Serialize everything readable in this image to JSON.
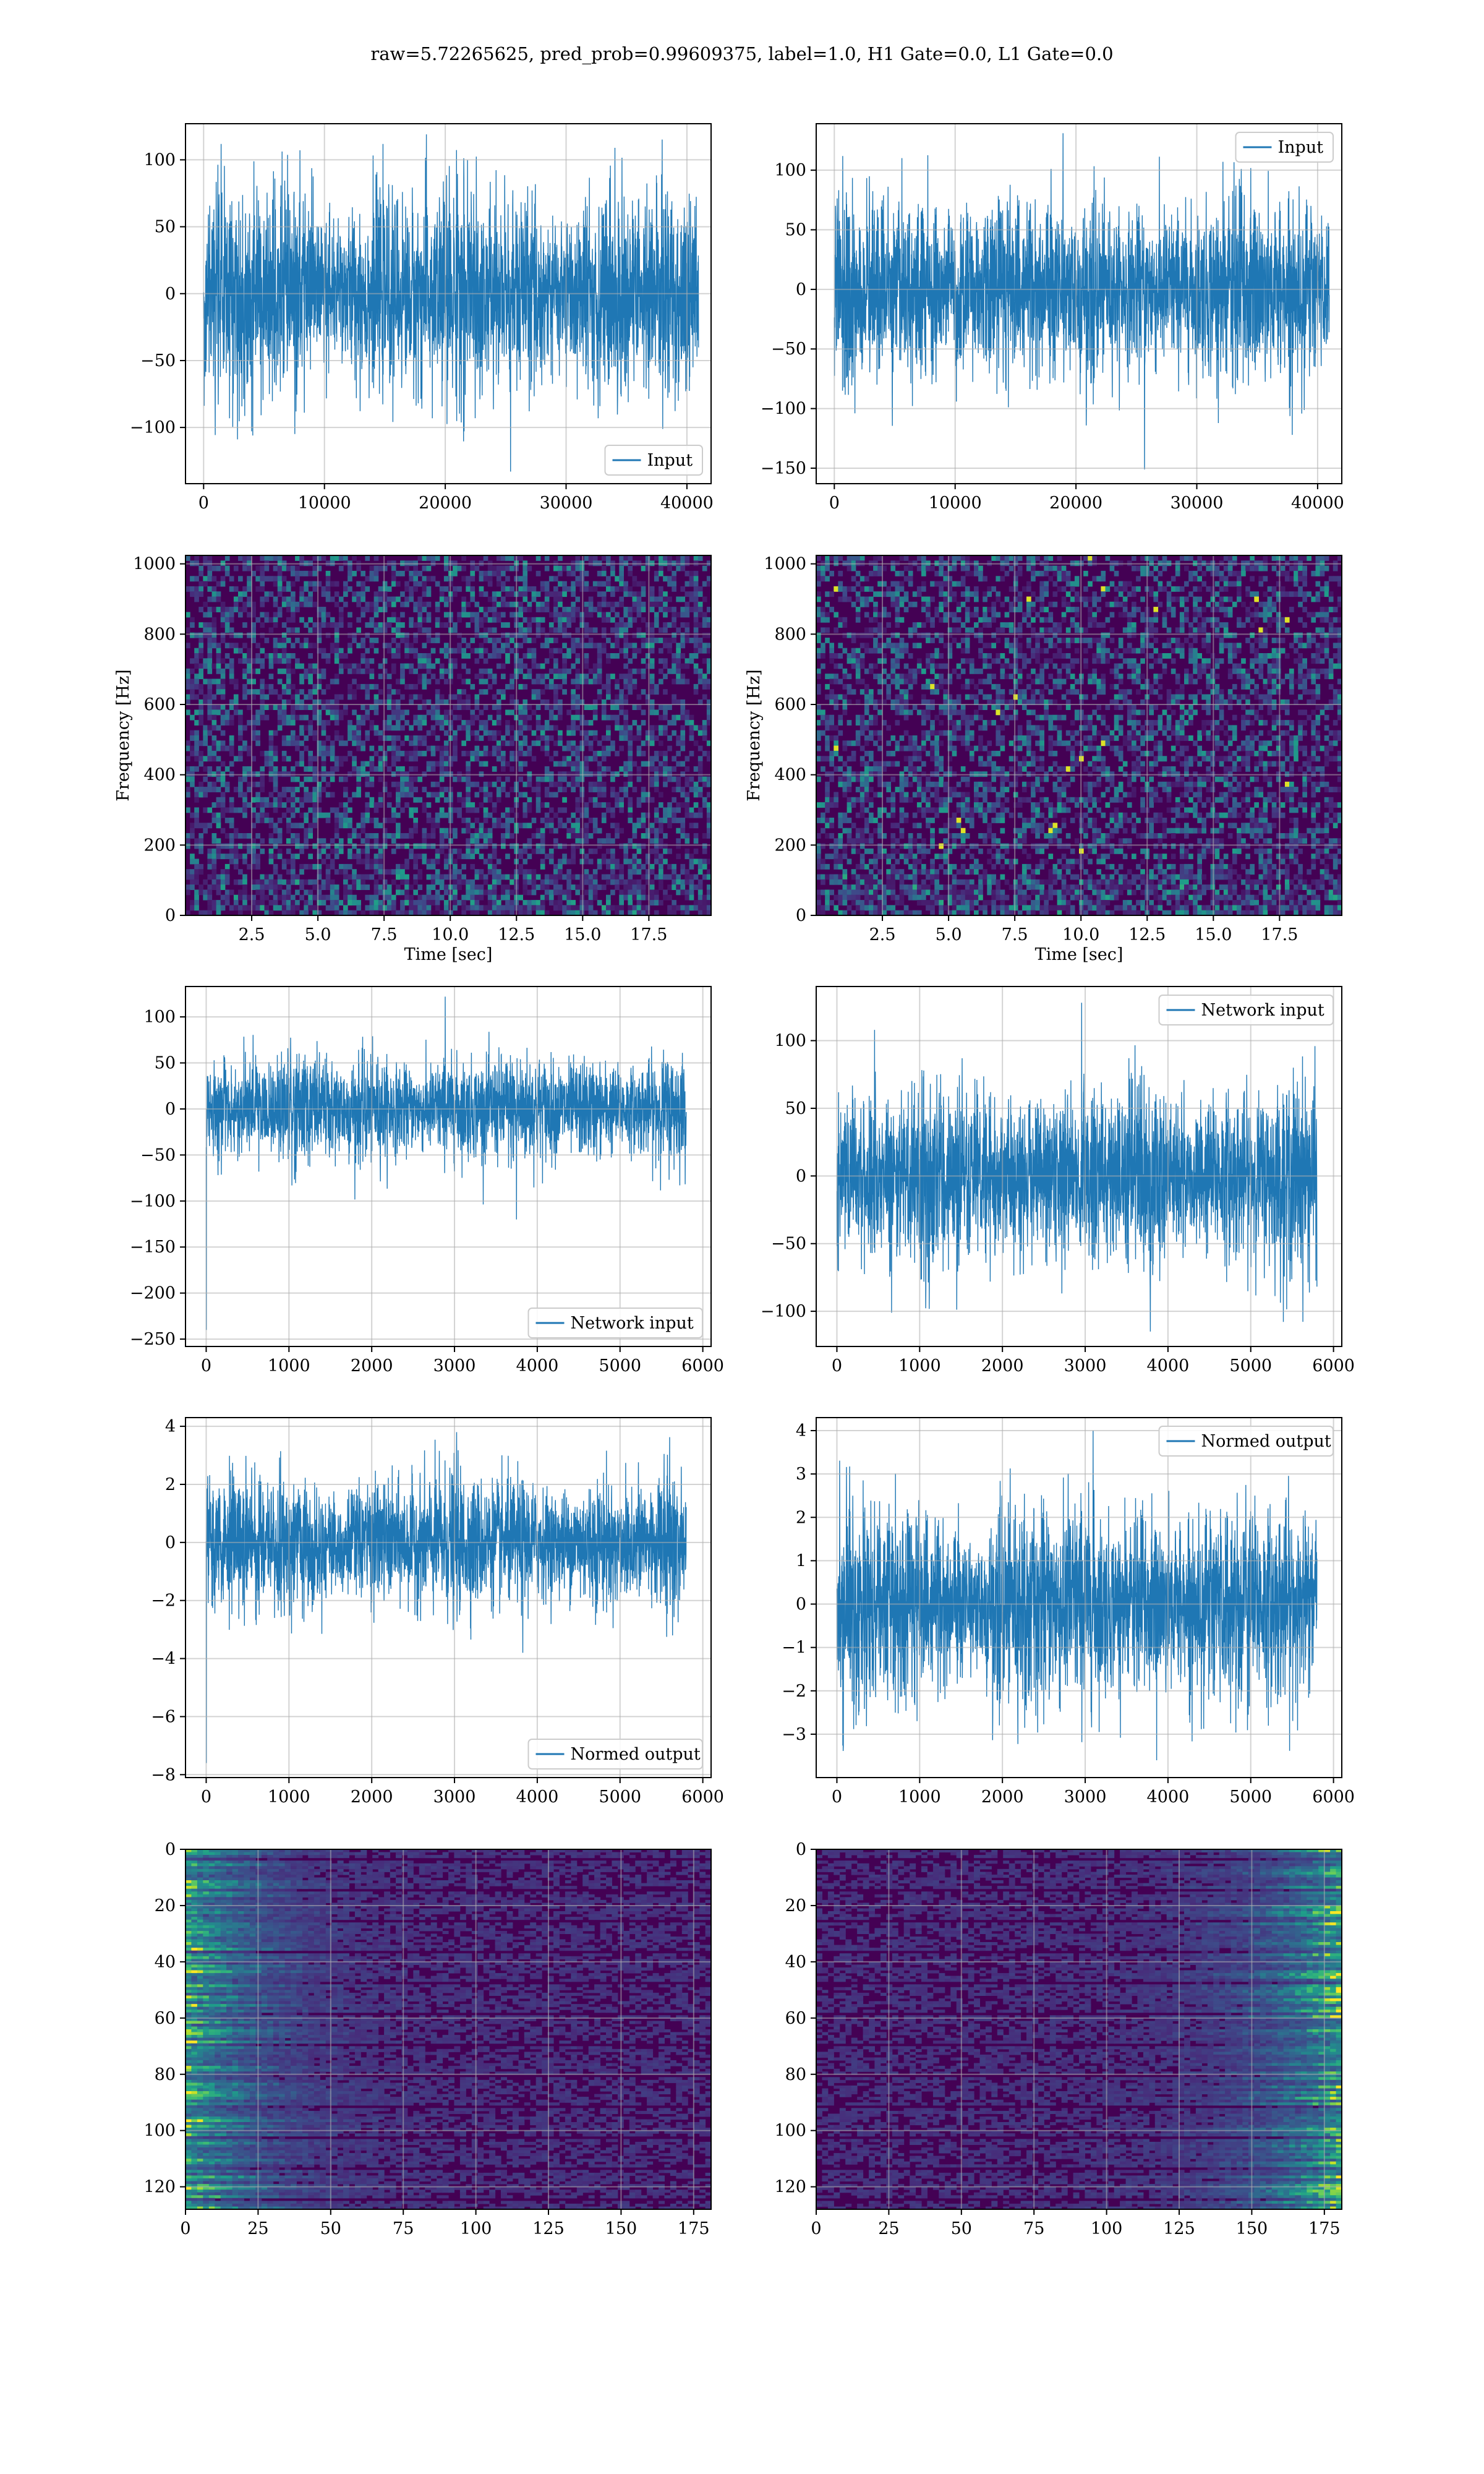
{
  "figure_title": "raw=5.72265625, pred_prob=0.99609375, label=1.0, H1 Gate=0.0, L1 Gate=0.0",
  "colors": {
    "series": "#1f77b4",
    "viridis_dark": "#440154",
    "grid": "#b0b0b0"
  },
  "chart_data": [
    {
      "id": "h1-input",
      "type": "line",
      "series": [
        {
          "name": "Input"
        }
      ],
      "legend_position": "lower-right",
      "xlim": [
        -1500,
        42000
      ],
      "ylim": [
        -142,
        127
      ],
      "xticks": [
        0,
        10000,
        20000,
        30000,
        40000
      ],
      "yticks": [
        -100,
        -50,
        0,
        50,
        100
      ],
      "x_range": [
        0,
        40960
      ],
      "amplitude_std": 32,
      "peaks": {
        "max": 119,
        "min": -133
      },
      "grid": true
    },
    {
      "id": "l1-input",
      "type": "line",
      "series": [
        {
          "name": "Input"
        }
      ],
      "legend_position": "upper-right",
      "xlim": [
        -1500,
        42000
      ],
      "ylim": [
        -163,
        139
      ],
      "xticks": [
        0,
        10000,
        20000,
        30000,
        40000
      ],
      "yticks": [
        -150,
        -100,
        -50,
        0,
        50,
        100
      ],
      "x_range": [
        0,
        40960
      ],
      "amplitude_std": 32,
      "peaks": {
        "max": 131,
        "min": -151
      },
      "grid": true
    },
    {
      "id": "h1-spectrogram",
      "type": "heatmap",
      "xlabel": "Time [sec]",
      "ylabel": "Frequency [Hz]",
      "xlim": [
        0,
        19.85
      ],
      "ylim": [
        0,
        1024
      ],
      "xticks": [
        2.5,
        5.0,
        7.5,
        10.0,
        12.5,
        15.0,
        17.5
      ],
      "yticks": [
        0,
        200,
        400,
        600,
        800,
        1000
      ],
      "colormap": "viridis",
      "grid": true
    },
    {
      "id": "l1-spectrogram",
      "type": "heatmap",
      "xlabel": "Time [sec]",
      "ylabel": "Frequency [Hz]",
      "xlim": [
        0,
        19.85
      ],
      "ylim": [
        0,
        1024
      ],
      "xticks": [
        2.5,
        5.0,
        7.5,
        10.0,
        12.5,
        15.0,
        17.5
      ],
      "yticks": [
        0,
        200,
        400,
        600,
        800,
        1000
      ],
      "colormap": "viridis",
      "grid": true
    },
    {
      "id": "h1-network-input",
      "type": "line",
      "series": [
        {
          "name": "Network input"
        }
      ],
      "legend_position": "lower-right",
      "xlim": [
        -250,
        6100
      ],
      "ylim": [
        -258,
        133
      ],
      "xticks": [
        0,
        1000,
        2000,
        3000,
        4000,
        5000,
        6000
      ],
      "yticks": [
        -250,
        -200,
        -150,
        -100,
        -50,
        0,
        50,
        100
      ],
      "x_range": [
        0,
        5800
      ],
      "amplitude_std": 24,
      "peaks": {
        "max": 122,
        "min": -240
      },
      "grid": true
    },
    {
      "id": "l1-network-input",
      "type": "line",
      "series": [
        {
          "name": "Network input"
        }
      ],
      "legend_position": "upper-right",
      "xlim": [
        -250,
        6100
      ],
      "ylim": [
        -126,
        140
      ],
      "xticks": [
        0,
        1000,
        2000,
        3000,
        4000,
        5000,
        6000
      ],
      "yticks": [
        -100,
        -50,
        0,
        50,
        100
      ],
      "x_range": [
        0,
        5800
      ],
      "amplitude_std": 28,
      "peaks": {
        "max": 128,
        "min": -115
      },
      "grid": true
    },
    {
      "id": "h1-normed-output",
      "type": "line",
      "series": [
        {
          "name": "Normed output"
        }
      ],
      "legend_position": "lower-right",
      "xlim": [
        -250,
        6100
      ],
      "ylim": [
        -8.1,
        4.3
      ],
      "xticks": [
        0,
        1000,
        2000,
        3000,
        4000,
        5000,
        6000
      ],
      "yticks": [
        -8,
        -6,
        -4,
        -2,
        0,
        2,
        4
      ],
      "x_range": [
        0,
        5800
      ],
      "amplitude_std": 0.95,
      "peaks": {
        "max": 3.8,
        "min": -7.6
      },
      "grid": true
    },
    {
      "id": "l1-normed-output",
      "type": "line",
      "series": [
        {
          "name": "Normed output"
        }
      ],
      "legend_position": "upper-right",
      "xlim": [
        -250,
        6100
      ],
      "ylim": [
        -4.0,
        4.3
      ],
      "xticks": [
        0,
        1000,
        2000,
        3000,
        4000,
        5000,
        6000
      ],
      "yticks": [
        -3,
        -2,
        -1,
        0,
        1,
        2,
        3,
        4
      ],
      "x_range": [
        0,
        5800
      ],
      "amplitude_std": 0.95,
      "peaks": {
        "max": 4.0,
        "min": -3.6
      },
      "grid": true
    },
    {
      "id": "h1-feature-map",
      "type": "heatmap",
      "xlim": [
        0,
        181
      ],
      "ylim": [
        128,
        0
      ],
      "xticks": [
        0,
        25,
        50,
        75,
        100,
        125,
        150,
        175
      ],
      "yticks": [
        0,
        20,
        40,
        60,
        80,
        100,
        120
      ],
      "colormap": "viridis",
      "bright_side": "left",
      "grid": true
    },
    {
      "id": "l1-feature-map",
      "type": "heatmap",
      "xlim": [
        0,
        181
      ],
      "ylim": [
        128,
        0
      ],
      "xticks": [
        0,
        25,
        50,
        75,
        100,
        125,
        150,
        175
      ],
      "yticks": [
        0,
        20,
        40,
        60,
        80,
        100,
        120
      ],
      "colormap": "viridis",
      "bright_side": "right",
      "grid": true
    }
  ]
}
